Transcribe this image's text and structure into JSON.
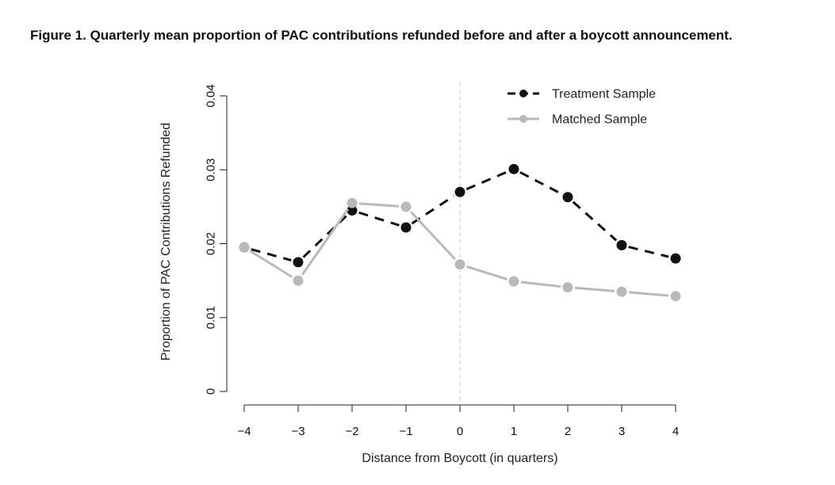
{
  "figure": {
    "title": "Figure 1.  Quarterly mean proportion of PAC contributions refunded before and after a boycott announcement."
  },
  "chart_data": {
    "type": "line",
    "title": "Figure 1.  Quarterly mean proportion of PAC contributions refunded before and after a boycott announcement.",
    "xlabel": "Distance from Boycott (in quarters)",
    "ylabel": "Proportion of PAC Contributions Refunded",
    "x": [
      -4,
      -3,
      -2,
      -1,
      0,
      1,
      2,
      3,
      4
    ],
    "xtick_labels": [
      "−4",
      "−3",
      "−2",
      "−1",
      "0",
      "1",
      "2",
      "3",
      "4"
    ],
    "xlim": [
      -4,
      4
    ],
    "ylim": [
      0,
      0.04
    ],
    "yticks": [
      0,
      0.01,
      0.02,
      0.03,
      0.04
    ],
    "ytick_labels": [
      "0",
      "0.01",
      "0.02",
      "0.03",
      "0.04"
    ],
    "grid": false,
    "legend_position": "top-right",
    "reference_line": {
      "x": 0,
      "style": "dashed",
      "color": "#c8c8c8"
    },
    "series": [
      {
        "name": "Treatment Sample",
        "color": "#111111",
        "line_style": "dashed",
        "values": [
          0.0195,
          0.0175,
          0.0245,
          0.0222,
          0.027,
          0.0301,
          0.0263,
          0.0198,
          0.018
        ]
      },
      {
        "name": "Matched Sample",
        "color": "#b8b8bf",
        "line_style": "solid",
        "values": [
          0.0195,
          0.015,
          0.0255,
          0.025,
          0.0172,
          0.0149,
          0.0141,
          0.0135,
          0.0129
        ]
      }
    ]
  }
}
